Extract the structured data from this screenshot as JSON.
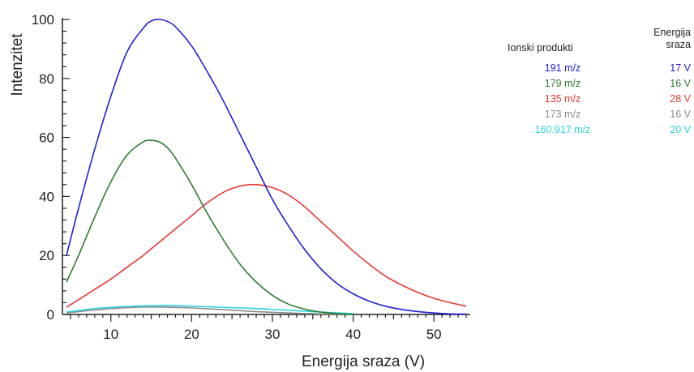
{
  "chart_data": {
    "type": "line",
    "xlabel": "Energija sraza (V)",
    "ylabel": "Intenzitet",
    "xlim": [
      4,
      54.5
    ],
    "ylim": [
      0,
      100
    ],
    "x_ticks": [
      10,
      20,
      30,
      40,
      50
    ],
    "y_ticks": [
      0,
      20,
      40,
      60,
      80,
      100
    ],
    "grid": false,
    "legend_position": "top-right",
    "legend_headers": {
      "product": "Ionski produkti",
      "energy_line1": "Energija",
      "energy_line2": "sraza"
    },
    "series": [
      {
        "name": "191 m/z",
        "energy": "17 V",
        "color": "#1f1fd6",
        "x": [
          4.5,
          6,
          8,
          10,
          12,
          14,
          15,
          16,
          17,
          18,
          20,
          22,
          24,
          26,
          28,
          30,
          32,
          34,
          36,
          38,
          40,
          42,
          44,
          46,
          48,
          50,
          52,
          54
        ],
        "y": [
          20,
          36,
          56,
          74,
          89,
          97,
          99.5,
          100,
          99.3,
          97.5,
          91,
          82,
          72,
          61,
          50,
          39,
          30,
          22,
          15.5,
          10.5,
          7,
          4.5,
          2.8,
          1.7,
          1,
          0.5,
          0.2,
          0.1
        ]
      },
      {
        "name": "179 m/z",
        "energy": "16 V",
        "color": "#2e7d32",
        "x": [
          4.5,
          6,
          8,
          10,
          12,
          14,
          15,
          16,
          17,
          18,
          20,
          22,
          24,
          26,
          28,
          30,
          32,
          34,
          36,
          38,
          40
        ],
        "y": [
          11,
          20,
          33,
          45,
          54,
          58.5,
          59,
          58.5,
          56.5,
          53,
          44,
          34,
          25,
          17,
          11,
          6.5,
          3.5,
          1.8,
          0.8,
          0.3,
          0
        ]
      },
      {
        "name": "135 m/z",
        "energy": "28 V",
        "color": "#e53935",
        "x": [
          4.5,
          6,
          8,
          10,
          12,
          14,
          16,
          18,
          20,
          22,
          24,
          26,
          28,
          30,
          32,
          34,
          36,
          38,
          40,
          42,
          44,
          46,
          48,
          50,
          52,
          54
        ],
        "y": [
          2.5,
          5,
          8.5,
          12,
          16,
          20,
          24.5,
          29,
          33.5,
          38,
          41.5,
          43.5,
          44,
          43,
          40.5,
          36.5,
          31.5,
          26.5,
          21.5,
          17,
          13,
          10,
          7.5,
          5.5,
          4,
          2.8
        ]
      },
      {
        "name": "173 m/z",
        "energy": "16 V",
        "color": "#8c8c8c",
        "x": [
          4.5,
          8,
          12,
          16,
          20,
          24,
          28,
          32,
          36,
          40
        ],
        "y": [
          0.5,
          1.5,
          2.3,
          2.5,
          2.2,
          1.6,
          1,
          0.5,
          0.2,
          0.05
        ]
      },
      {
        "name": "160.917 m/z",
        "energy": "20 V",
        "color": "#2ad4e0",
        "x": [
          4.5,
          8,
          12,
          16,
          20,
          24,
          28,
          32,
          36,
          40
        ],
        "y": [
          0.8,
          2,
          2.7,
          3,
          2.8,
          2.4,
          2,
          1.4,
          0.8,
          0.3
        ]
      }
    ]
  }
}
